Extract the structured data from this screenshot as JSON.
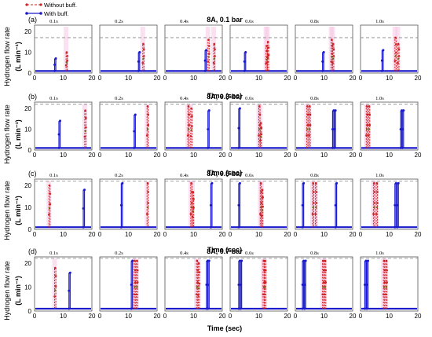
{
  "chart_data": {
    "type": "line",
    "legend": {
      "placement": "top-left",
      "entries": [
        {
          "name": "Without buff.",
          "color": "#cc2222",
          "style": "dashed-dot-markers"
        },
        {
          "name": "With buff.",
          "color": "#1a1acc",
          "style": "solid-dot-markers"
        }
      ]
    },
    "shared": {
      "x_ticks": [
        "0",
        "10",
        "20"
      ],
      "xlim": [
        0,
        20
      ],
      "xlabel": "Time (sec)",
      "ylabel_line1": "Hydrogen flow rate",
      "ylabel_line2": "(L min⁻¹)",
      "duration_labels": [
        "0.1s",
        "0.2s",
        "0.4s",
        "0.6s",
        "0.8s",
        "1.0s"
      ],
      "baseline": 1
    },
    "rows": [
      {
        "letter": "(a)",
        "title": "8A, 0.1 bar",
        "yticks": [
          "0",
          "10",
          "20"
        ],
        "ylim": [
          0,
          20
        ],
        "ref": 17,
        "panels": [
          {
            "red": [
              {
                "t": 11,
                "p": 10
              }
            ],
            "blue": [
              {
                "t": 7,
                "p": 7
              }
            ]
          },
          {
            "red": [
              {
                "t": 15,
                "p": 14
              }
            ],
            "blue": [
              {
                "t": 13.5,
                "p": 10
              }
            ]
          },
          {
            "red": [
              {
                "t": 15,
                "p": 16
              },
              {
                "t": 17,
                "p": 14
              }
            ],
            "blue": [
              {
                "t": 14,
                "p": 11
              }
            ]
          },
          {
            "red": [
              {
                "t": 13,
                "p": 15
              },
              {
                "t": 12.5,
                "p": 13
              }
            ],
            "blue": [
              {
                "t": 5,
                "p": 10
              }
            ]
          },
          {
            "red": [
              {
                "t": 12.5,
                "p": 16
              },
              {
                "t": 13,
                "p": 14
              }
            ],
            "blue": [
              {
                "t": 9.5,
                "p": 10
              }
            ]
          },
          {
            "red": [
              {
                "t": 12,
                "p": 17
              },
              {
                "t": 13,
                "p": 14
              }
            ],
            "blue": [
              {
                "t": 7.5,
                "p": 11
              }
            ]
          }
        ]
      },
      {
        "letter": "(b)",
        "title": "8A, 0.3 bar",
        "yticks": [
          "0",
          "10",
          "20"
        ],
        "ylim": [
          0,
          20
        ],
        "ref": 22,
        "panels": [
          {
            "red": [
              {
                "t": 17.5,
                "p": 19
              }
            ],
            "blue": [
              {
                "t": 8.5,
                "p": 14
              }
            ]
          },
          {
            "red": [
              {
                "t": 16.5,
                "p": 21
              }
            ],
            "blue": [
              {
                "t": 12,
                "p": 17
              }
            ]
          },
          {
            "red": [
              {
                "t": 8,
                "p": 21
              },
              {
                "t": 9,
                "p": 20
              }
            ],
            "blue": [
              {
                "t": 15,
                "p": 19
              }
            ]
          },
          {
            "red": [
              {
                "t": 10,
                "p": 21
              },
              {
                "t": 10.5,
                "p": 13
              }
            ],
            "blue": [
              {
                "t": 3,
                "p": 20
              }
            ]
          },
          {
            "red": [
              {
                "t": 4,
                "p": 21
              },
              {
                "t": 4.8,
                "p": 21
              }
            ],
            "blue": [
              {
                "t": 13,
                "p": 19
              },
              {
                "t": 13.6,
                "p": 19
              }
            ]
          },
          {
            "red": [
              {
                "t": 2,
                "p": 21
              },
              {
                "t": 2.8,
                "p": 21
              }
            ],
            "blue": [
              {
                "t": 14,
                "p": 19
              },
              {
                "t": 14.6,
                "p": 19
              }
            ]
          }
        ]
      },
      {
        "letter": "(c)",
        "title": "8A, 0.5 bar",
        "yticks": [
          "0",
          "10",
          "20"
        ],
        "ylim": [
          0,
          20
        ],
        "ref": 22,
        "panels": [
          {
            "red": [
              {
                "t": 5,
                "p": 20
              }
            ],
            "blue": [
              {
                "t": 17,
                "p": 18
              }
            ]
          },
          {
            "red": [
              {
                "t": 16.5,
                "p": 21
              }
            ],
            "blue": [
              {
                "t": 7.5,
                "p": 21
              }
            ]
          },
          {
            "red": [
              {
                "t": 9,
                "p": 21
              },
              {
                "t": 9.6,
                "p": 17
              }
            ],
            "blue": [
              {
                "t": 16,
                "p": 21
              }
            ]
          },
          {
            "red": [
              {
                "t": 10.5,
                "p": 21
              },
              {
                "t": 11,
                "p": 18
              }
            ],
            "blue": [
              {
                "t": 3,
                "p": 21
              }
            ]
          },
          {
            "red": [
              {
                "t": 6,
                "p": 21
              },
              {
                "t": 7,
                "p": 21
              }
            ],
            "blue": [
              {
                "t": 2.5,
                "p": 21
              },
              {
                "t": 14,
                "p": 21
              }
            ]
          },
          {
            "red": [
              {
                "t": 4.5,
                "p": 21
              },
              {
                "t": 5.5,
                "p": 21
              }
            ],
            "blue": [
              {
                "t": 12,
                "p": 21
              },
              {
                "t": 12.8,
                "p": 21
              }
            ]
          }
        ]
      },
      {
        "letter": "(d)",
        "title": "8A, 0.7 bar",
        "yticks": [
          "0",
          "10",
          "20"
        ],
        "ylim": [
          0,
          20
        ],
        "ref": 22,
        "panels": [
          {
            "red": [
              {
                "t": 7,
                "p": 18
              }
            ],
            "blue": [
              {
                "t": 12,
                "p": 16
              }
            ]
          },
          {
            "red": [
              {
                "t": 12,
                "p": 21
              },
              {
                "t": 12.8,
                "p": 21
              }
            ],
            "blue": [
              {
                "t": 11,
                "p": 21
              }
            ]
          },
          {
            "red": [
              {
                "t": 11,
                "p": 21
              },
              {
                "t": 11.6,
                "p": 20
              }
            ],
            "blue": [
              {
                "t": 14.5,
                "p": 21
              },
              {
                "t": 15,
                "p": 21
              }
            ]
          },
          {
            "red": [
              {
                "t": 11.5,
                "p": 21
              },
              {
                "t": 12,
                "p": 21
              }
            ],
            "blue": [
              {
                "t": 3,
                "p": 21
              },
              {
                "t": 3.6,
                "p": 21
              }
            ]
          },
          {
            "red": [
              {
                "t": 9.5,
                "p": 21
              },
              {
                "t": 10.2,
                "p": 21
              }
            ],
            "blue": [
              {
                "t": 2.5,
                "p": 21
              },
              {
                "t": 3.2,
                "p": 21
              }
            ]
          },
          {
            "red": [
              {
                "t": 8,
                "p": 21
              },
              {
                "t": 8.8,
                "p": 21
              }
            ],
            "blue": [
              {
                "t": 1.5,
                "p": 21
              },
              {
                "t": 2.2,
                "p": 21
              }
            ]
          }
        ]
      }
    ]
  }
}
